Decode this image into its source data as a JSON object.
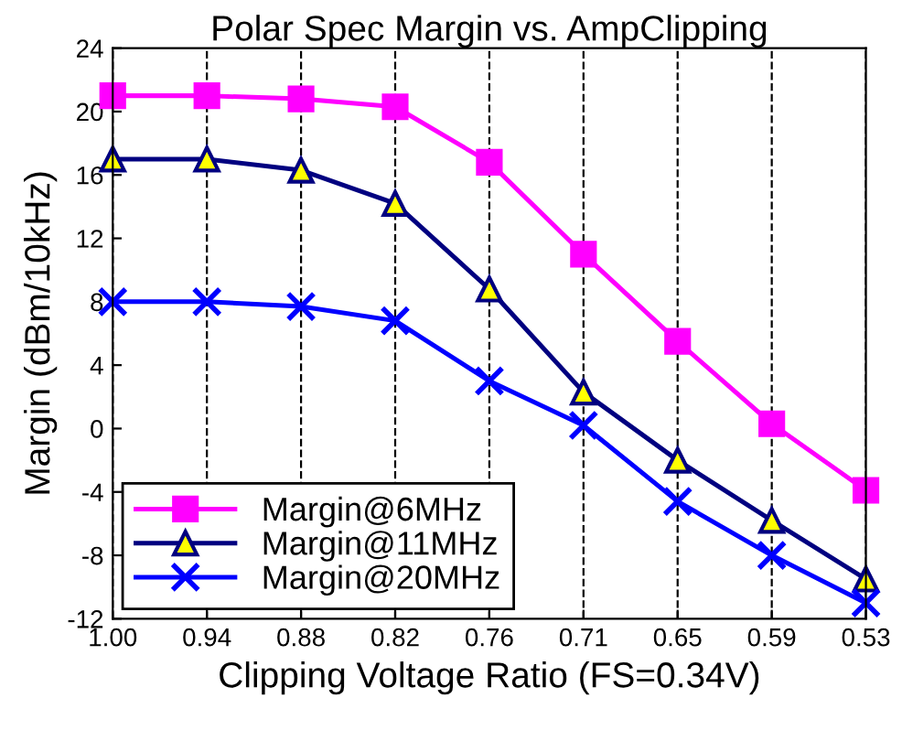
{
  "chart_data": {
    "type": "line",
    "title": "Polar Spec Margin vs. AmpClipping",
    "xlabel": "Clipping Voltage Ratio (FS=0.34V)",
    "ylabel": "Margin (dBm/10kHz)",
    "categories": [
      "1.00",
      "0.94",
      "0.88",
      "0.82",
      "0.76",
      "0.71",
      "0.65",
      "0.59",
      "0.53"
    ],
    "series": [
      {
        "name": "Margin@6MHz",
        "color": "#ff00ff",
        "marker": "square",
        "values": [
          21,
          21,
          20.8,
          20.3,
          16.8,
          11,
          5.5,
          0.3,
          -3.9
        ]
      },
      {
        "name": "Margin@11MHz",
        "color": "#000080",
        "marker": "triangle",
        "colors": [
          "#ffff00",
          "#ffff00",
          "#ffff00",
          "#ffff00",
          "#ffff00",
          "#ffff00",
          "#ffff00",
          "#ffff00",
          "#ffff00"
        ],
        "values": [
          17,
          17,
          16.3,
          14.2,
          8.8,
          2.3,
          -2,
          -5.8,
          -9.5
        ]
      },
      {
        "name": "Margin@20MHz",
        "color": "#0000ff",
        "marker": "cross",
        "values": [
          8,
          8,
          7.7,
          6.8,
          3,
          0.2,
          -4.6,
          -8,
          -11
        ]
      }
    ],
    "ylim": [
      -12,
      24
    ],
    "yticks": [
      -12,
      -8,
      -4,
      0,
      4,
      8,
      12,
      16,
      20,
      24
    ],
    "grid": "x",
    "legend": "bottom left",
    "line_style": "solid"
  }
}
